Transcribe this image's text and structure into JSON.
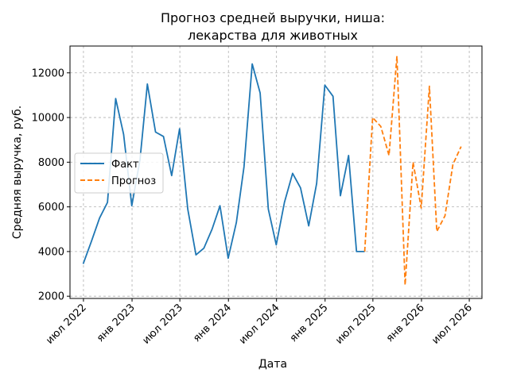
{
  "chart_data": {
    "type": "line",
    "title_lines": [
      "Прогноз средней выручки, ниша:",
      "лекарства для животных"
    ],
    "xlabel": "Дата",
    "ylabel": "Средняя выручка, руб.",
    "ylim": [
      1900,
      13200
    ],
    "yticks": [
      2000,
      4000,
      6000,
      8000,
      10000,
      12000
    ],
    "xlim": [
      "2022-05-11",
      "2026-08-18"
    ],
    "xticks": [
      {
        "date": "2022-07-01",
        "label": "июл 2022"
      },
      {
        "date": "2023-01-01",
        "label": "янв 2023"
      },
      {
        "date": "2023-07-01",
        "label": "июл 2023"
      },
      {
        "date": "2024-01-01",
        "label": "янв 2024"
      },
      {
        "date": "2024-07-01",
        "label": "июл 2024"
      },
      {
        "date": "2025-01-01",
        "label": "янв 2025"
      },
      {
        "date": "2025-07-01",
        "label": "июл 2025"
      },
      {
        "date": "2026-01-01",
        "label": "янв 2026"
      },
      {
        "date": "2026-07-01",
        "label": "июл 2026"
      }
    ],
    "grid": true,
    "legend_position": "center-left",
    "series": [
      {
        "name": "Факт",
        "color": "#1f77b4",
        "style": "solid",
        "x": [
          "2022-06-30",
          "2022-07-31",
          "2022-08-31",
          "2022-09-30",
          "2022-10-31",
          "2022-11-30",
          "2022-12-31",
          "2023-01-31",
          "2023-02-28",
          "2023-03-31",
          "2023-04-30",
          "2023-05-31",
          "2023-06-30",
          "2023-07-31",
          "2023-08-31",
          "2023-09-30",
          "2023-10-31",
          "2023-11-30",
          "2023-12-31",
          "2024-01-31",
          "2024-02-29",
          "2024-03-31",
          "2024-04-30",
          "2024-05-31",
          "2024-06-30",
          "2024-07-31",
          "2024-08-31",
          "2024-09-30",
          "2024-10-31",
          "2024-11-30",
          "2024-12-31",
          "2025-01-31",
          "2025-02-28",
          "2025-03-31",
          "2025-04-30",
          "2025-05-31"
        ],
        "values": [
          3450,
          4450,
          5500,
          6200,
          10850,
          9250,
          6050,
          8100,
          11500,
          9350,
          9150,
          7400,
          9500,
          5900,
          3850,
          4150,
          5000,
          6050,
          3700,
          5300,
          7800,
          12400,
          11100,
          5900,
          4300,
          6200,
          7500,
          6850,
          5150,
          7050,
          11450,
          10950,
          6500,
          8300,
          4000,
          4000
        ]
      },
      {
        "name": "Прогноз",
        "color": "#ff7f0e",
        "style": "dashed",
        "x": [
          "2025-05-31",
          "2025-06-30",
          "2025-07-31",
          "2025-08-31",
          "2025-09-30",
          "2025-10-31",
          "2025-11-30",
          "2025-12-31",
          "2026-01-31",
          "2026-02-28",
          "2026-03-31",
          "2026-04-30",
          "2026-05-31"
        ],
        "values": [
          4000,
          10000,
          9600,
          8300,
          12750,
          2500,
          8000,
          5950,
          11400,
          4900,
          5600,
          7900,
          8700
        ]
      }
    ]
  }
}
